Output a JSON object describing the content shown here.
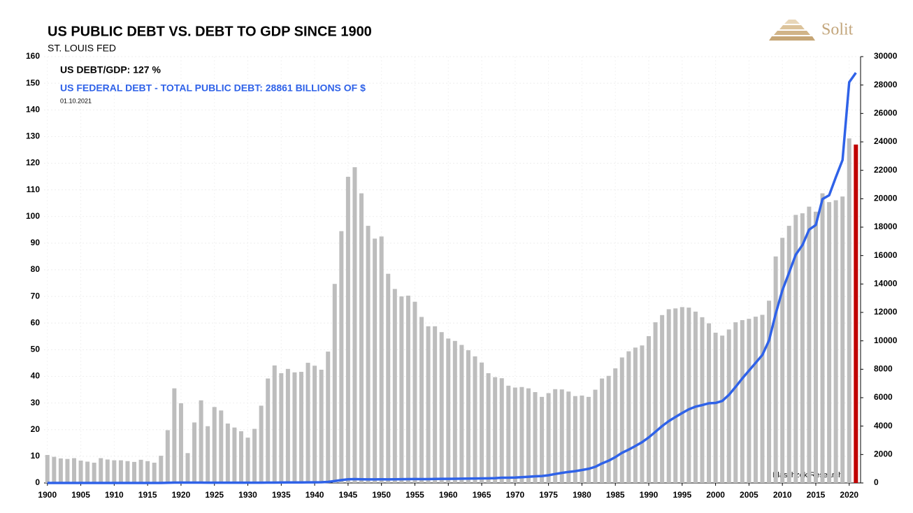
{
  "chart_data": {
    "type": "bar",
    "title": "US PUBLIC DEBT VS. DEBT TO GDP SINCE 1900",
    "subtitle": "ST. LOUIS FED",
    "annotations": [
      "US DEBT/GDP: 127 %",
      "US FEDERAL DEBT - TOTAL PUBLIC DEBT: 28861 BILLIONS OF $",
      "01.10.2021",
      "Blaschzok Research"
    ],
    "logo": "Solit",
    "x": [
      1900,
      1901,
      1902,
      1903,
      1904,
      1905,
      1906,
      1907,
      1908,
      1909,
      1910,
      1911,
      1912,
      1913,
      1914,
      1915,
      1916,
      1917,
      1918,
      1919,
      1920,
      1921,
      1922,
      1923,
      1924,
      1925,
      1926,
      1927,
      1928,
      1929,
      1930,
      1931,
      1932,
      1933,
      1934,
      1935,
      1936,
      1937,
      1938,
      1939,
      1940,
      1941,
      1942,
      1943,
      1944,
      1945,
      1946,
      1947,
      1948,
      1949,
      1950,
      1951,
      1952,
      1953,
      1954,
      1955,
      1956,
      1957,
      1958,
      1959,
      1960,
      1961,
      1962,
      1963,
      1964,
      1965,
      1966,
      1967,
      1968,
      1969,
      1970,
      1971,
      1972,
      1973,
      1974,
      1975,
      1976,
      1977,
      1978,
      1979,
      1980,
      1981,
      1982,
      1983,
      1984,
      1985,
      1986,
      1987,
      1988,
      1989,
      1990,
      1991,
      1992,
      1993,
      1994,
      1995,
      1996,
      1997,
      1998,
      1999,
      2000,
      2001,
      2002,
      2003,
      2004,
      2005,
      2006,
      2007,
      2008,
      2009,
      2010,
      2011,
      2012,
      2013,
      2014,
      2015,
      2016,
      2017,
      2018,
      2019,
      2020,
      2021
    ],
    "xlim": [
      1899.5,
      2021.7
    ],
    "xticks": [
      1900,
      1905,
      1910,
      1915,
      1920,
      1925,
      1930,
      1935,
      1940,
      1945,
      1950,
      1955,
      1960,
      1965,
      1970,
      1975,
      1980,
      1985,
      1990,
      1995,
      2000,
      2005,
      2010,
      2015,
      2020
    ],
    "ylim": [
      0,
      160
    ],
    "yticks": [
      0,
      10,
      20,
      30,
      40,
      50,
      60,
      70,
      80,
      90,
      100,
      110,
      120,
      130,
      140,
      150,
      160
    ],
    "y2lim": [
      0,
      30000
    ],
    "y2ticks": [
      0,
      2000,
      4000,
      6000,
      8000,
      10000,
      12000,
      14000,
      16000,
      18000,
      20000,
      22000,
      24000,
      26000,
      28000,
      30000
    ],
    "grid": true,
    "series": [
      {
        "type": "bar",
        "color": "#bdbdbd",
        "last_color": "#c00000",
        "values": [
          10.5,
          9.8,
          9.2,
          9.0,
          9.3,
          8.4,
          8.0,
          7.6,
          9.3,
          8.8,
          8.5,
          8.5,
          8.2,
          7.9,
          8.7,
          8.2,
          7.6,
          10.2,
          19.8,
          35.5,
          29.9,
          11.2,
          22.7,
          31.0,
          21.3,
          28.5,
          27.2,
          22.3,
          20.8,
          19.4,
          17.0,
          20.3,
          29.0,
          39.2,
          44.1,
          41.2,
          42.8,
          41.5,
          41.7,
          45.1,
          44.0,
          42.5,
          49.3,
          74.7,
          94.5,
          114.9,
          118.5,
          108.7,
          96.5,
          91.7,
          92.5,
          78.5,
          72.8,
          70.0,
          70.3,
          68.0,
          62.3,
          58.8,
          58.8,
          56.6,
          54.2,
          53.3,
          51.8,
          49.8,
          47.5,
          45.2,
          41.2,
          39.7,
          39.3,
          36.5,
          35.8,
          36.0,
          35.5,
          34.1,
          32.3,
          33.7,
          35.2,
          35.1,
          34.3,
          32.6,
          32.8,
          32.3,
          35.0,
          39.2,
          40.2,
          43.0,
          47.1,
          49.4,
          50.8,
          51.6,
          55.1,
          60.3,
          63.0,
          65.2,
          65.5,
          66.0,
          65.8,
          64.3,
          62.2,
          59.9,
          56.4,
          55.3,
          57.6,
          60.3,
          61.1,
          61.6,
          62.4,
          63.1,
          68.4,
          85.0,
          92.0,
          96.5,
          100.6,
          101.2,
          103.7,
          101.8,
          108.7,
          105.4,
          106.1,
          107.5,
          129.3,
          127
        ]
      },
      {
        "type": "line",
        "axis": "y2",
        "color": "#2f62e8",
        "values": [
          1,
          1,
          1,
          1,
          1,
          1,
          1,
          1,
          1,
          1,
          1,
          1,
          1,
          1,
          1,
          1,
          1,
          3,
          12,
          25,
          24,
          24,
          23,
          22,
          21,
          20,
          19,
          18,
          18,
          17,
          16,
          17,
          19,
          23,
          27,
          29,
          34,
          36,
          37,
          40,
          43,
          49,
          72,
          137,
          201,
          259,
          269,
          258,
          252,
          253,
          257,
          255,
          259,
          266,
          271,
          274,
          273,
          272,
          280,
          287,
          291,
          293,
          303,
          310,
          316,
          322,
          328,
          340,
          369,
          366,
          381,
          408,
          436,
          466,
          484,
          542,
          629,
          706,
          777,
          829,
          909,
          995,
          1137,
          1372,
          1565,
          1818,
          2121,
          2346,
          2601,
          2868,
          3207,
          3598,
          4002,
          4351,
          4643,
          4921,
          5182,
          5369,
          5478,
          5606,
          5629,
          5770,
          6198,
          6760,
          7355,
          7905,
          8451,
          9008,
          10025,
          11910,
          13562,
          14790,
          16066,
          16738,
          17824,
          18151,
          19977,
          20245,
          21516,
          22719,
          28200,
          28861
        ]
      }
    ]
  }
}
